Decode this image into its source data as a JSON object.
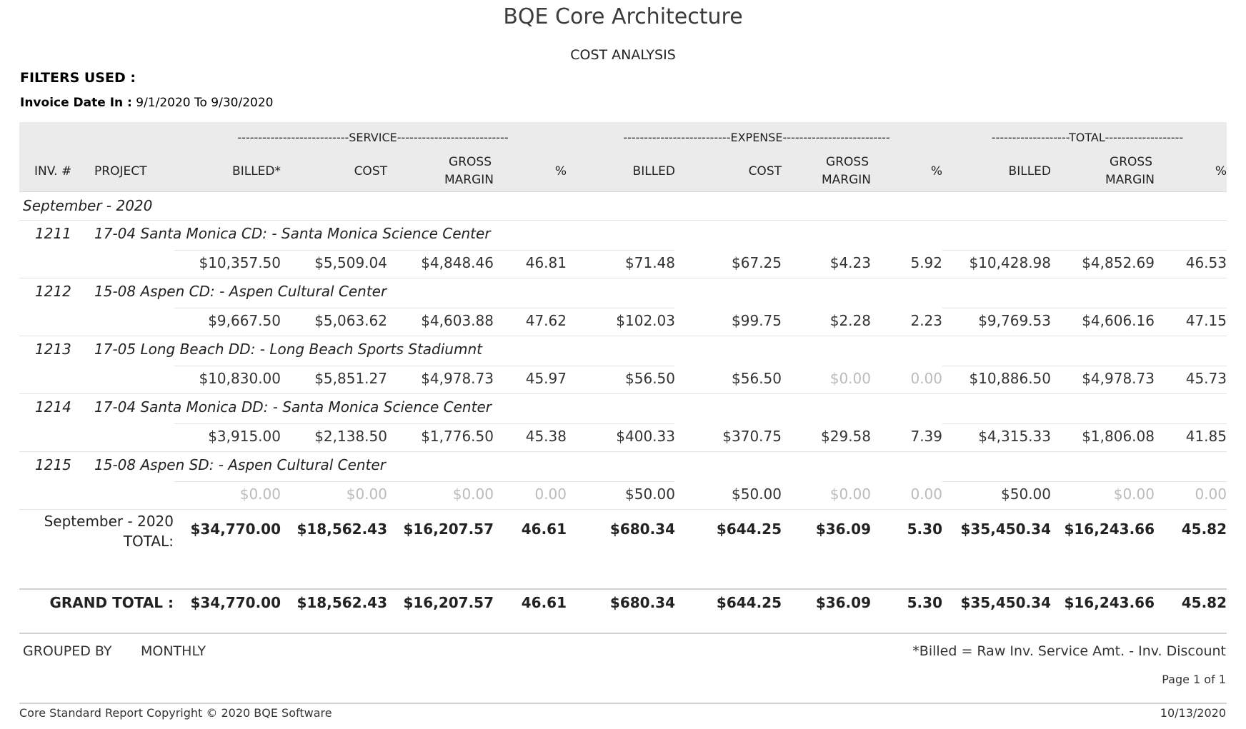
{
  "report": {
    "title": "BQE Core Architecture",
    "subtitle": "COST ANALYSIS",
    "filters_label": "FILTERS USED :",
    "invoice_date_label": "Invoice Date In :",
    "invoice_date_value": "9/1/2020 To 9/30/2020"
  },
  "header": {
    "group_service": "---------------------------SERVICE---------------------------",
    "group_expense": "--------------------------EXPENSE--------------------------",
    "group_total": "-------------------TOTAL-------------------",
    "col_inv": "INV. #",
    "col_project": "PROJECT",
    "col_svc_billed": "BILLED*",
    "col_svc_cost": "COST",
    "col_svc_gm_1": "GROSS",
    "col_svc_gm_2": "MARGIN",
    "col_svc_pct": "%",
    "col_exp_billed": "BILLED",
    "col_exp_cost": "COST",
    "col_exp_gm_1": "GROSS",
    "col_exp_gm_2": "MARGIN",
    "col_exp_pct": "%",
    "col_tot_billed": "BILLED",
    "col_tot_gm_1": "GROSS",
    "col_tot_gm_2": "MARGIN",
    "col_tot_pct": "%"
  },
  "group": {
    "month_label": "September - 2020",
    "invoices": [
      {
        "inv": "1211",
        "project": "17-04 Santa Monica CD: - Santa Monica Science Center",
        "values": [
          "$10,357.50",
          "$5,509.04",
          "$4,848.46",
          "46.81",
          "$71.48",
          "$67.25",
          "$4.23",
          "5.92",
          "$10,428.98",
          "$4,852.69",
          "46.53"
        ]
      },
      {
        "inv": "1212",
        "project": "15-08 Aspen CD: - Aspen Cultural Center",
        "values": [
          "$9,667.50",
          "$5,063.62",
          "$4,603.88",
          "47.62",
          "$102.03",
          "$99.75",
          "$2.28",
          "2.23",
          "$9,769.53",
          "$4,606.16",
          "47.15"
        ]
      },
      {
        "inv": "1213",
        "project": "17-05 Long Beach DD: - Long Beach Sports Stadiumnt",
        "values": [
          "$10,830.00",
          "$5,851.27",
          "$4,978.73",
          "45.97",
          "$56.50",
          "$56.50",
          "$0.00",
          "0.00",
          "$10,886.50",
          "$4,978.73",
          "45.73"
        ]
      },
      {
        "inv": "1214",
        "project": "17-04 Santa Monica DD: - Santa Monica Science Center",
        "values": [
          "$3,915.00",
          "$2,138.50",
          "$1,776.50",
          "45.38",
          "$400.33",
          "$370.75",
          "$29.58",
          "7.39",
          "$4,315.33",
          "$1,806.08",
          "41.85"
        ]
      },
      {
        "inv": "1215",
        "project": "15-08 Aspen SD: - Aspen Cultural Center",
        "values": [
          "$0.00",
          "$0.00",
          "$0.00",
          "0.00",
          "$50.00",
          "$50.00",
          "$0.00",
          "0.00",
          "$50.00",
          "$0.00",
          "0.00"
        ]
      }
    ],
    "subtotal_label_1": "September - 2020",
    "subtotal_label_2": "TOTAL:",
    "subtotal_values": [
      "$34,770.00",
      "$18,562.43",
      "$16,207.57",
      "46.61",
      "$680.34",
      "$644.25",
      "$36.09",
      "5.30",
      "$35,450.34",
      "$16,243.66",
      "45.82"
    ]
  },
  "grand_total": {
    "label": "GRAND TOTAL :",
    "values": [
      "$34,770.00",
      "$18,562.43",
      "$16,207.57",
      "46.61",
      "$680.34",
      "$644.25",
      "$36.09",
      "5.30",
      "$35,450.34",
      "$16,243.66",
      "45.82"
    ]
  },
  "footer": {
    "grouped_by_label": "GROUPED BY",
    "grouped_by_value": "MONTHLY",
    "billed_note": "*Billed = Raw Inv. Service Amt. - Inv. Discount",
    "page": "Page 1 of 1",
    "copyright": "Core Standard Report Copyright © 2020 BQE Software",
    "date": "10/13/2020"
  }
}
